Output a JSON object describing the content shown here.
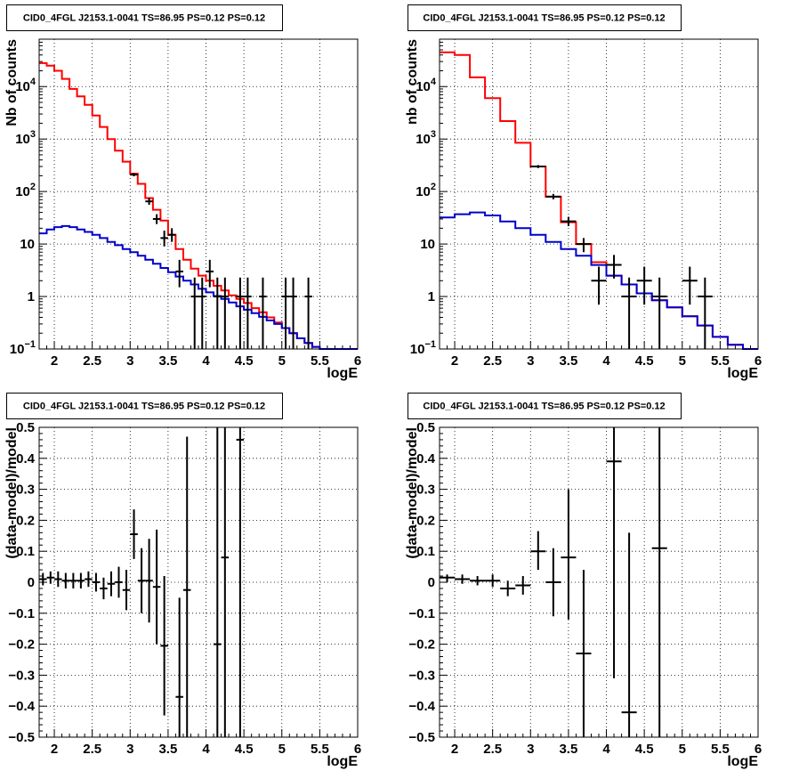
{
  "chart_data": [
    {
      "type": "line",
      "title": "CID0_4FGL J2153.1-0041 TS=86.95 PS=0.12 PS=0.12",
      "xlabel": "logE",
      "ylabel": "Nb of counts",
      "xlim": [
        1.8,
        6
      ],
      "ylim": [
        0.1,
        80000
      ],
      "yscale": "log",
      "xticks": [
        2,
        2.5,
        3,
        3.5,
        4,
        4.5,
        5,
        5.5,
        6
      ],
      "xtick_labels": [
        "2",
        "2.5",
        "3",
        "3.5",
        "4",
        "4.5",
        "5",
        "5.5",
        "6"
      ],
      "yticks": [
        0.1,
        1,
        10,
        100,
        1000,
        10000
      ],
      "ytick_labels": [
        "10^-1",
        "1",
        "10",
        "10^2",
        "10^3",
        "10^4"
      ],
      "grid": true,
      "series": [
        {
          "color": "#ff0000",
          "style": "step",
          "edges": [
            1.8,
            1.9,
            2.0,
            2.1,
            2.2,
            2.3,
            2.4,
            2.5,
            2.6,
            2.7,
            2.8,
            2.9,
            3.0,
            3.1,
            3.2,
            3.3,
            3.4,
            3.5,
            3.6,
            3.7,
            3.8,
            3.9,
            4.0,
            4.1,
            4.2,
            4.3,
            4.4,
            4.5,
            4.6,
            4.7,
            4.8,
            4.9,
            5.0,
            5.1,
            5.2,
            5.3,
            5.4,
            5.5,
            6.0
          ],
          "values": [
            28000,
            25000,
            20000,
            14000,
            9000,
            6500,
            4500,
            2800,
            1700,
            1000,
            600,
            370,
            220,
            140,
            75,
            45,
            28,
            15,
            8,
            5,
            3.4,
            2.5,
            2,
            1.6,
            1.3,
            1.05,
            0.9,
            0.75,
            0.6,
            0.5,
            0.4,
            0.32,
            0.25,
            0.2,
            0.16,
            0.13,
            0.11,
            0.1
          ]
        },
        {
          "color": "#0000cc",
          "style": "step",
          "edges": [
            1.8,
            1.9,
            2.0,
            2.1,
            2.2,
            2.3,
            2.4,
            2.5,
            2.6,
            2.7,
            2.8,
            2.9,
            3.0,
            3.1,
            3.2,
            3.3,
            3.4,
            3.5,
            3.6,
            3.7,
            3.8,
            3.9,
            4.0,
            4.1,
            4.2,
            4.3,
            4.4,
            4.5,
            4.6,
            4.7,
            4.8,
            4.9,
            5.0,
            5.1,
            5.2,
            5.3,
            5.4,
            5.5,
            6.0
          ],
          "values": [
            16,
            19,
            21,
            22,
            21,
            19,
            17,
            15,
            13,
            11,
            9.5,
            8,
            7,
            6,
            5,
            4.2,
            3.5,
            2.9,
            2.4,
            2,
            1.7,
            1.4,
            1.2,
            1.02,
            0.9,
            0.77,
            0.65,
            0.56,
            0.48,
            0.41,
            0.35,
            0.3,
            0.25,
            0.2,
            0.16,
            0.13,
            0.11,
            0.1
          ]
        },
        {
          "color": "#000000",
          "style": "errorbar",
          "points": [
            {
              "x": 3.05,
              "y": 210,
              "dx": 0.05,
              "lo": 195,
              "hi": 225
            },
            {
              "x": 3.25,
              "y": 65,
              "dx": 0.05,
              "lo": 56,
              "hi": 75
            },
            {
              "x": 3.35,
              "y": 30,
              "dx": 0.05,
              "lo": 24,
              "hi": 37
            },
            {
              "x": 3.45,
              "y": 13,
              "dx": 0.05,
              "lo": 9,
              "hi": 18
            },
            {
              "x": 3.55,
              "y": 15,
              "dx": 0.05,
              "lo": 11,
              "hi": 20
            },
            {
              "x": 3.65,
              "y": 3,
              "dx": 0.05,
              "lo": 1.5,
              "hi": 5
            },
            {
              "x": 3.85,
              "y": 1,
              "dx": 0.05,
              "lo": 0.1,
              "hi": 2.3
            },
            {
              "x": 3.95,
              "y": 1,
              "dx": 0.05,
              "lo": 0.1,
              "hi": 2.3
            },
            {
              "x": 4.05,
              "y": 3,
              "dx": 0.05,
              "lo": 1.5,
              "hi": 5
            },
            {
              "x": 4.15,
              "y": 1,
              "dx": 0.05,
              "lo": 0.1,
              "hi": 2.3
            },
            {
              "x": 4.25,
              "y": 1,
              "dx": 0.05,
              "lo": 0.1,
              "hi": 2.3
            },
            {
              "x": 4.45,
              "y": 1,
              "dx": 0.05,
              "lo": 0.1,
              "hi": 2.3
            },
            {
              "x": 4.55,
              "y": 1,
              "dx": 0.05,
              "lo": 0.1,
              "hi": 2.3
            },
            {
              "x": 4.75,
              "y": 1,
              "dx": 0.05,
              "lo": 0.1,
              "hi": 2.3
            },
            {
              "x": 5.05,
              "y": 1,
              "dx": 0.05,
              "lo": 0.1,
              "hi": 2.3
            },
            {
              "x": 5.15,
              "y": 1,
              "dx": 0.05,
              "lo": 0.1,
              "hi": 2.3
            },
            {
              "x": 5.35,
              "y": 1,
              "dx": 0.05,
              "lo": 0.1,
              "hi": 2.3
            }
          ]
        }
      ]
    },
    {
      "type": "line",
      "title": "CID0_4FGL J2153.1-0041 TS=86.95 PS=0.12 PS=0.12",
      "xlabel": "logE",
      "ylabel": "nb of counts",
      "xlim": [
        1.8,
        6
      ],
      "ylim": [
        0.1,
        80000
      ],
      "yscale": "log",
      "xticks": [
        2,
        2.5,
        3,
        3.5,
        4,
        4.5,
        5,
        5.5,
        6
      ],
      "xtick_labels": [
        "2",
        "2.5",
        "3",
        "3.5",
        "4",
        "4.5",
        "5",
        "5.5",
        "6"
      ],
      "yticks": [
        0.1,
        1,
        10,
        100,
        1000,
        10000
      ],
      "ytick_labels": [
        "10^-1",
        "1",
        "10",
        "10^2",
        "10^3",
        "10^4"
      ],
      "grid": true,
      "series": [
        {
          "color": "#ff0000",
          "style": "step",
          "edges": [
            1.8,
            2.0,
            2.2,
            2.4,
            2.6,
            2.8,
            3.0,
            3.2,
            3.4,
            3.6,
            3.8,
            4.0,
            4.2,
            4.4,
            4.6,
            4.8,
            5.0,
            5.2,
            5.4,
            5.6,
            5.8,
            6.0
          ],
          "values": [
            45000,
            40000,
            15000,
            6000,
            2200,
            850,
            300,
            80,
            26,
            10,
            4.5,
            2.5,
            1.7,
            1.15,
            0.85,
            0.62,
            0.42,
            0.28,
            0.17,
            0.12,
            0.1
          ]
        },
        {
          "color": "#0000cc",
          "style": "step",
          "edges": [
            1.8,
            2.0,
            2.2,
            2.4,
            2.6,
            2.8,
            3.0,
            3.2,
            3.4,
            3.6,
            3.8,
            4.0,
            4.2,
            4.4,
            4.6,
            4.8,
            5.0,
            5.2,
            5.4,
            5.6,
            5.8,
            6.0
          ],
          "values": [
            32,
            37,
            40,
            35,
            27,
            20,
            15,
            11,
            8,
            6,
            4,
            2.5,
            1.7,
            1.15,
            0.85,
            0.62,
            0.42,
            0.28,
            0.17,
            0.12,
            0.1
          ]
        },
        {
          "color": "#000000",
          "style": "errorbar",
          "points": [
            {
              "x": 3.1,
              "y": 300,
              "dx": 0.1,
              "lo": 280,
              "hi": 320
            },
            {
              "x": 3.3,
              "y": 80,
              "dx": 0.1,
              "lo": 71,
              "hi": 90
            },
            {
              "x": 3.5,
              "y": 27,
              "dx": 0.1,
              "lo": 22,
              "hi": 33
            },
            {
              "x": 3.7,
              "y": 10,
              "dx": 0.1,
              "lo": 7,
              "hi": 13
            },
            {
              "x": 3.9,
              "y": 2,
              "dx": 0.1,
              "lo": 0.7,
              "hi": 3.7
            },
            {
              "x": 4.1,
              "y": 4,
              "dx": 0.1,
              "lo": 2.2,
              "hi": 6.2
            },
            {
              "x": 4.3,
              "y": 1,
              "dx": 0.1,
              "lo": 0.1,
              "hi": 2.3
            },
            {
              "x": 4.5,
              "y": 2,
              "dx": 0.1,
              "lo": 0.7,
              "hi": 3.7
            },
            {
              "x": 4.7,
              "y": 1,
              "dx": 0.1,
              "lo": 0.1,
              "hi": 2.3
            },
            {
              "x": 5.1,
              "y": 2,
              "dx": 0.1,
              "lo": 0.7,
              "hi": 3.7
            },
            {
              "x": 5.3,
              "y": 1,
              "dx": 0.1,
              "lo": 0.1,
              "hi": 2.3
            }
          ]
        }
      ]
    },
    {
      "type": "scatter",
      "title": "CID0_4FGL J2153.1-0041 TS=86.95 PS=0.12 PS=0.12",
      "xlabel": "logE",
      "ylabel": "(data-model)/model",
      "xlim": [
        1.8,
        6
      ],
      "ylim": [
        -0.5,
        0.5
      ],
      "yscale": "linear",
      "xticks": [
        2,
        2.5,
        3,
        3.5,
        4,
        4.5,
        5,
        5.5,
        6
      ],
      "xtick_labels": [
        "2",
        "2.5",
        "3",
        "3.5",
        "4",
        "4.5",
        "5",
        "5.5",
        "6"
      ],
      "yticks": [
        -0.5,
        -0.4,
        -0.3,
        -0.2,
        -0.1,
        0,
        0.1,
        0.2,
        0.3,
        0.4,
        0.5
      ],
      "ytick_labels": [
        "−0.5",
        "−0.4",
        "−0.3",
        "−0.2",
        "−0.1",
        "0",
        "0.1",
        "0.2",
        "0.3",
        "0.4",
        "0.5"
      ],
      "grid": true,
      "series": [
        {
          "color": "#000000",
          "style": "errorbar",
          "points": [
            {
              "x": 1.85,
              "y": 0.01,
              "dx": 0.05,
              "lo": -0.01,
              "hi": 0.03
            },
            {
              "x": 1.95,
              "y": 0.015,
              "dx": 0.05,
              "lo": -0.005,
              "hi": 0.035
            },
            {
              "x": 2.05,
              "y": 0.01,
              "dx": 0.05,
              "lo": -0.015,
              "hi": 0.035
            },
            {
              "x": 2.15,
              "y": 0.005,
              "dx": 0.05,
              "lo": -0.02,
              "hi": 0.03
            },
            {
              "x": 2.25,
              "y": 0.005,
              "dx": 0.05,
              "lo": -0.02,
              "hi": 0.03
            },
            {
              "x": 2.35,
              "y": 0.005,
              "dx": 0.05,
              "lo": -0.02,
              "hi": 0.03
            },
            {
              "x": 2.45,
              "y": 0.01,
              "dx": 0.05,
              "lo": -0.015,
              "hi": 0.035
            },
            {
              "x": 2.55,
              "y": 0.0,
              "dx": 0.05,
              "lo": -0.03,
              "hi": 0.03
            },
            {
              "x": 2.65,
              "y": -0.02,
              "dx": 0.05,
              "lo": -0.055,
              "hi": 0.015
            },
            {
              "x": 2.75,
              "y": -0.005,
              "dx": 0.05,
              "lo": -0.045,
              "hi": 0.035
            },
            {
              "x": 2.85,
              "y": 0.0,
              "dx": 0.05,
              "lo": -0.05,
              "hi": 0.05
            },
            {
              "x": 2.95,
              "y": -0.025,
              "dx": 0.05,
              "lo": -0.09,
              "hi": 0.04
            },
            {
              "x": 3.05,
              "y": 0.155,
              "dx": 0.05,
              "lo": 0.075,
              "hi": 0.235
            },
            {
              "x": 3.15,
              "y": 0.005,
              "dx": 0.05,
              "lo": -0.1,
              "hi": 0.11
            },
            {
              "x": 3.25,
              "y": 0.005,
              "dx": 0.05,
              "lo": -0.13,
              "hi": 0.14
            },
            {
              "x": 3.35,
              "y": -0.015,
              "dx": 0.05,
              "lo": -0.2,
              "hi": 0.17
            },
            {
              "x": 3.45,
              "y": -0.205,
              "dx": 0.05,
              "lo": -0.43,
              "hi": 0.02
            },
            {
              "x": 3.65,
              "y": -0.37,
              "dx": 0.05,
              "lo": -0.5,
              "hi": -0.05
            },
            {
              "x": 3.75,
              "y": -0.025,
              "dx": 0.05,
              "lo": -0.5,
              "hi": 0.47
            },
            {
              "x": 4.15,
              "y": -0.2,
              "dx": 0.05,
              "lo": -0.5,
              "hi": 0.5
            },
            {
              "x": 4.25,
              "y": 0.08,
              "dx": 0.05,
              "lo": -0.5,
              "hi": 0.5
            },
            {
              "x": 4.45,
              "y": 0.46,
              "dx": 0.05,
              "lo": -0.5,
              "hi": 0.5
            }
          ]
        }
      ]
    },
    {
      "type": "scatter",
      "title": "CID0_4FGL J2153.1-0041 TS=86.95 PS=0.12 PS=0.12",
      "xlabel": "logE",
      "ylabel": "(data-model)/model",
      "xlim": [
        1.8,
        6
      ],
      "ylim": [
        -0.5,
        0.5
      ],
      "yscale": "linear",
      "xticks": [
        2,
        2.5,
        3,
        3.5,
        4,
        4.5,
        5,
        5.5,
        6
      ],
      "xtick_labels": [
        "2",
        "2.5",
        "3",
        "3.5",
        "4",
        "4.5",
        "5",
        "5.5",
        "6"
      ],
      "yticks": [
        -0.5,
        -0.4,
        -0.3,
        -0.2,
        -0.1,
        0,
        0.1,
        0.2,
        0.3,
        0.4,
        0.5
      ],
      "ytick_labels": [
        "−0.5",
        "−0.4",
        "−0.3",
        "−0.2",
        "−0.1",
        "0",
        "0.1",
        "0.2",
        "0.3",
        "0.4",
        "0.5"
      ],
      "grid": true,
      "series": [
        {
          "color": "#000000",
          "style": "errorbar",
          "points": [
            {
              "x": 1.9,
              "y": 0.015,
              "dx": 0.1,
              "lo": 0.0,
              "hi": 0.025
            },
            {
              "x": 2.1,
              "y": 0.01,
              "dx": 0.1,
              "lo": -0.005,
              "hi": 0.025
            },
            {
              "x": 2.3,
              "y": 0.005,
              "dx": 0.1,
              "lo": -0.01,
              "hi": 0.02
            },
            {
              "x": 2.5,
              "y": 0.005,
              "dx": 0.1,
              "lo": -0.015,
              "hi": 0.025
            },
            {
              "x": 2.7,
              "y": -0.02,
              "dx": 0.1,
              "lo": -0.045,
              "hi": 0.005
            },
            {
              "x": 2.9,
              "y": -0.01,
              "dx": 0.1,
              "lo": -0.04,
              "hi": 0.02
            },
            {
              "x": 3.1,
              "y": 0.1,
              "dx": 0.1,
              "lo": 0.04,
              "hi": 0.165
            },
            {
              "x": 3.3,
              "y": 0.0,
              "dx": 0.1,
              "lo": -0.11,
              "hi": 0.11
            },
            {
              "x": 3.5,
              "y": 0.08,
              "dx": 0.1,
              "lo": -0.12,
              "hi": 0.3
            },
            {
              "x": 3.7,
              "y": -0.23,
              "dx": 0.1,
              "lo": -0.5,
              "hi": 0.04
            },
            {
              "x": 4.1,
              "y": 0.39,
              "dx": 0.1,
              "lo": -0.31,
              "hi": 0.5
            },
            {
              "x": 4.3,
              "y": -0.42,
              "dx": 0.1,
              "lo": -0.5,
              "hi": 0.16
            },
            {
              "x": 4.7,
              "y": 0.11,
              "dx": 0.1,
              "lo": -0.5,
              "hi": 0.5
            }
          ]
        }
      ]
    }
  ]
}
